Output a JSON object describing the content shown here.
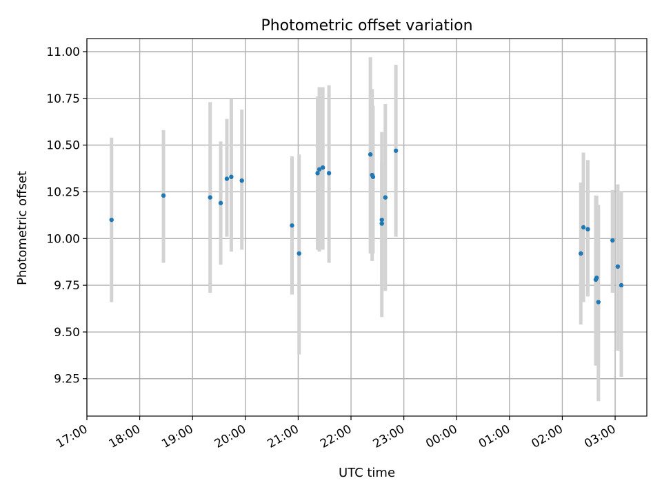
{
  "chart_data": {
    "type": "scatter",
    "title": "Photometric offset variation",
    "xlabel": "UTC time",
    "ylabel": "Photometric offset",
    "x_ticks": [
      "17:00",
      "18:00",
      "19:00",
      "20:00",
      "21:00",
      "22:00",
      "23:00",
      "00:00",
      "01:00",
      "02:00",
      "03:00"
    ],
    "y_ticks": [
      "9.25",
      "9.50",
      "9.75",
      "10.00",
      "10.25",
      "10.50",
      "10.75",
      "11.00"
    ],
    "xlim": [
      "17:00",
      "03:36"
    ],
    "ylim": [
      9.05,
      11.07
    ],
    "grid": true,
    "colors": {
      "point": "#1f77b4",
      "errorbar": "#d3d3d3",
      "grid": "#b0b0b0"
    },
    "points": [
      {
        "x": "17:28",
        "y": 10.1,
        "low": 9.66,
        "high": 10.54
      },
      {
        "x": "18:27",
        "y": 10.23,
        "low": 9.87,
        "high": 10.58
      },
      {
        "x": "19:20",
        "y": 10.22,
        "low": 9.71,
        "high": 10.73
      },
      {
        "x": "19:32",
        "y": 10.19,
        "low": 9.86,
        "high": 10.52
      },
      {
        "x": "19:39",
        "y": 10.32,
        "low": 10.01,
        "high": 10.64
      },
      {
        "x": "19:44",
        "y": 10.33,
        "low": 9.93,
        "high": 10.75
      },
      {
        "x": "19:56",
        "y": 10.31,
        "low": 9.94,
        "high": 10.69
      },
      {
        "x": "20:53",
        "y": 10.07,
        "low": 9.7,
        "high": 10.44
      },
      {
        "x": "21:01",
        "y": 9.92,
        "low": 9.38,
        "high": 10.45
      },
      {
        "x": "21:22",
        "y": 10.35,
        "low": 9.94,
        "high": 10.76
      },
      {
        "x": "21:24",
        "y": 10.37,
        "low": 9.93,
        "high": 10.81
      },
      {
        "x": "21:28",
        "y": 10.38,
        "low": 9.94,
        "high": 10.81
      },
      {
        "x": "21:35",
        "y": 10.35,
        "low": 9.87,
        "high": 10.82
      },
      {
        "x": "22:22",
        "y": 10.45,
        "low": 9.92,
        "high": 10.97
      },
      {
        "x": "22:24",
        "y": 10.34,
        "low": 9.88,
        "high": 10.8
      },
      {
        "x": "22:25",
        "y": 10.33,
        "low": 9.92,
        "high": 10.71
      },
      {
        "x": "22:35",
        "y": 10.1,
        "low": 9.58,
        "high": 10.57
      },
      {
        "x": "22:35",
        "y": 10.08,
        "low": 9.75,
        "high": 10.41
      },
      {
        "x": "22:39",
        "y": 10.22,
        "low": 9.72,
        "high": 10.72
      },
      {
        "x": "22:51",
        "y": 10.47,
        "low": 10.01,
        "high": 10.93
      },
      {
        "x": "02:21",
        "y": 9.92,
        "low": 9.54,
        "high": 10.3
      },
      {
        "x": "02:24",
        "y": 10.06,
        "low": 9.66,
        "high": 10.46
      },
      {
        "x": "02:29",
        "y": 10.05,
        "low": 9.69,
        "high": 10.42
      },
      {
        "x": "02:38",
        "y": 9.78,
        "low": 9.32,
        "high": 10.23
      },
      {
        "x": "02:39",
        "y": 9.79,
        "low": 9.33,
        "high": 10.23
      },
      {
        "x": "02:41",
        "y": 9.66,
        "low": 9.13,
        "high": 10.18
      },
      {
        "x": "02:57",
        "y": 9.99,
        "low": 9.71,
        "high": 10.26
      },
      {
        "x": "03:03",
        "y": 9.85,
        "low": 9.4,
        "high": 10.29
      },
      {
        "x": "03:07",
        "y": 9.75,
        "low": 9.26,
        "high": 10.25
      }
    ]
  }
}
